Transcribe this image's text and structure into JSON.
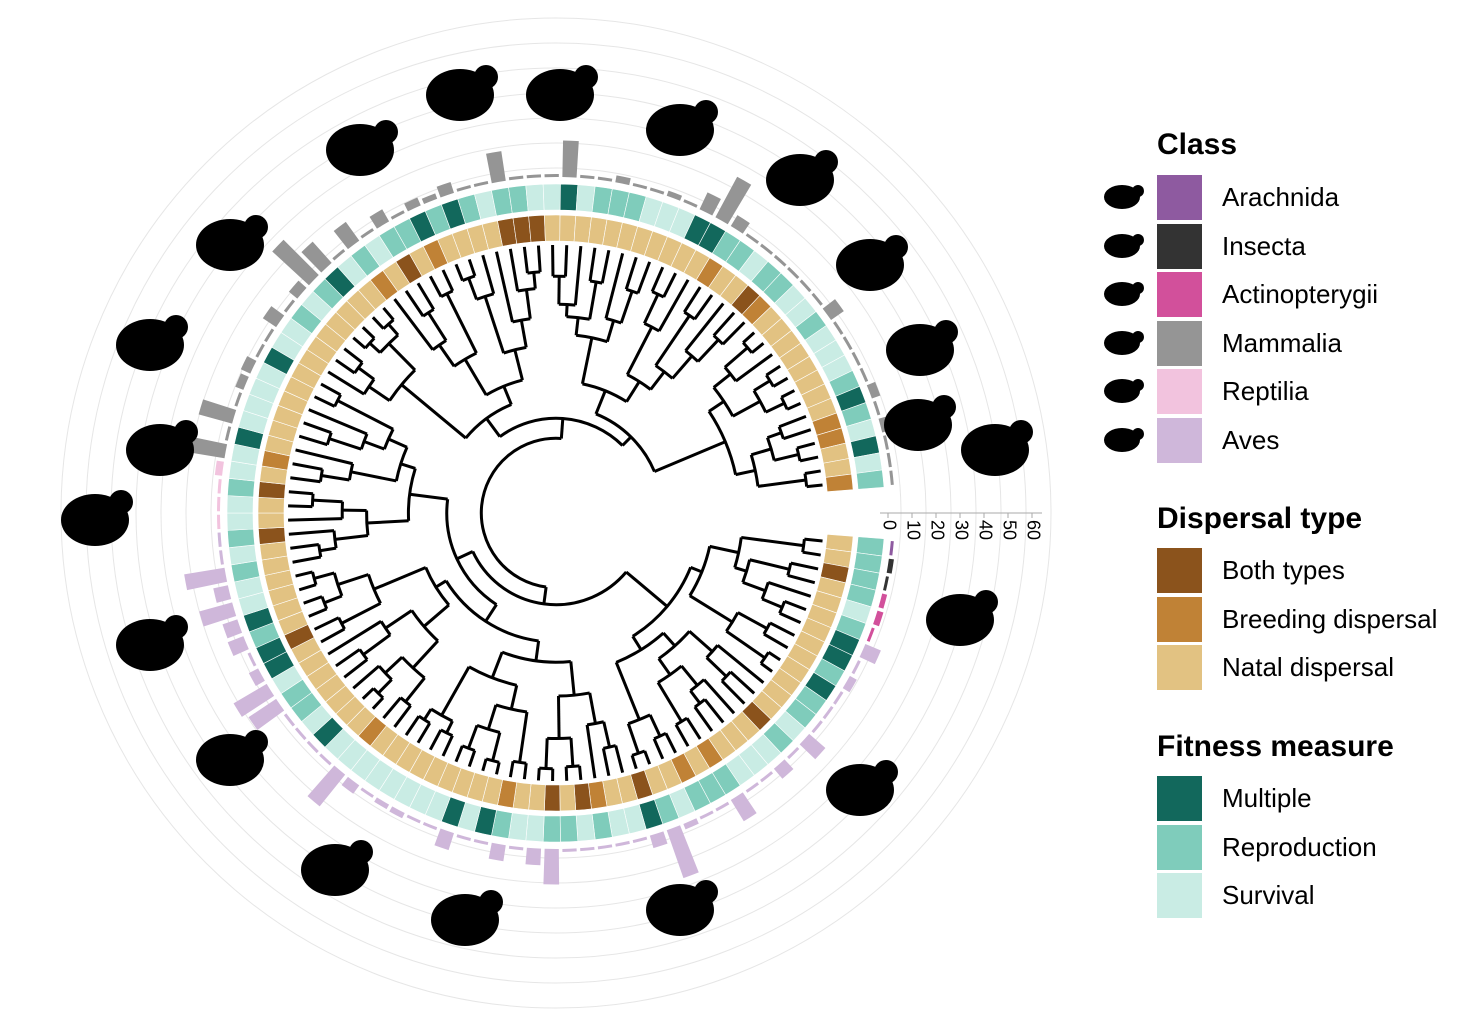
{
  "axis_ticks": [
    "0",
    "10",
    "20",
    "30",
    "40",
    "50",
    "60"
  ],
  "legend": {
    "class": {
      "title": "Class",
      "items": [
        {
          "label": "Arachnida",
          "color": "#8E5AA0",
          "icon": "spider-icon"
        },
        {
          "label": "Insecta",
          "color": "#333333",
          "icon": "butterfly-icon"
        },
        {
          "label": "Actinopterygii",
          "color": "#D2509B",
          "icon": "fish-icon"
        },
        {
          "label": "Mammalia",
          "color": "#959595",
          "icon": "squirrel-icon"
        },
        {
          "label": "Reptilia",
          "color": "#F2C3DE",
          "icon": "lizard-icon"
        },
        {
          "label": "Aves",
          "color": "#CFB7DA",
          "icon": "bird-icon"
        }
      ]
    },
    "dispersal": {
      "title": "Dispersal type",
      "items": [
        {
          "label": "Both types",
          "color": "#8B531C"
        },
        {
          "label": "Breeding dispersal",
          "color": "#C08236"
        },
        {
          "label": "Natal dispersal",
          "color": "#E2C282"
        }
      ]
    },
    "fitness": {
      "title": "Fitness measure",
      "items": [
        {
          "label": "Multiple",
          "color": "#12685C"
        },
        {
          "label": "Reproduction",
          "color": "#7FCCBB"
        },
        {
          "label": "Survival",
          "color": "#C9ECE4"
        }
      ]
    }
  },
  "silhouettes": [
    "human-icon",
    "gorilla-icon",
    "lynx-icon",
    "deer-icon",
    "koala-icon",
    "fish-icon",
    "butterfly-icon",
    "spider-icon",
    "bird-icon",
    "sparrow-icon",
    "crow-icon",
    "finch-icon",
    "owl-icon",
    "flying-bird-icon",
    "quail-icon",
    "lizard-icon",
    "mouse-icon",
    "rat-icon",
    "marmot-icon",
    "squirrel-icon"
  ]
}
